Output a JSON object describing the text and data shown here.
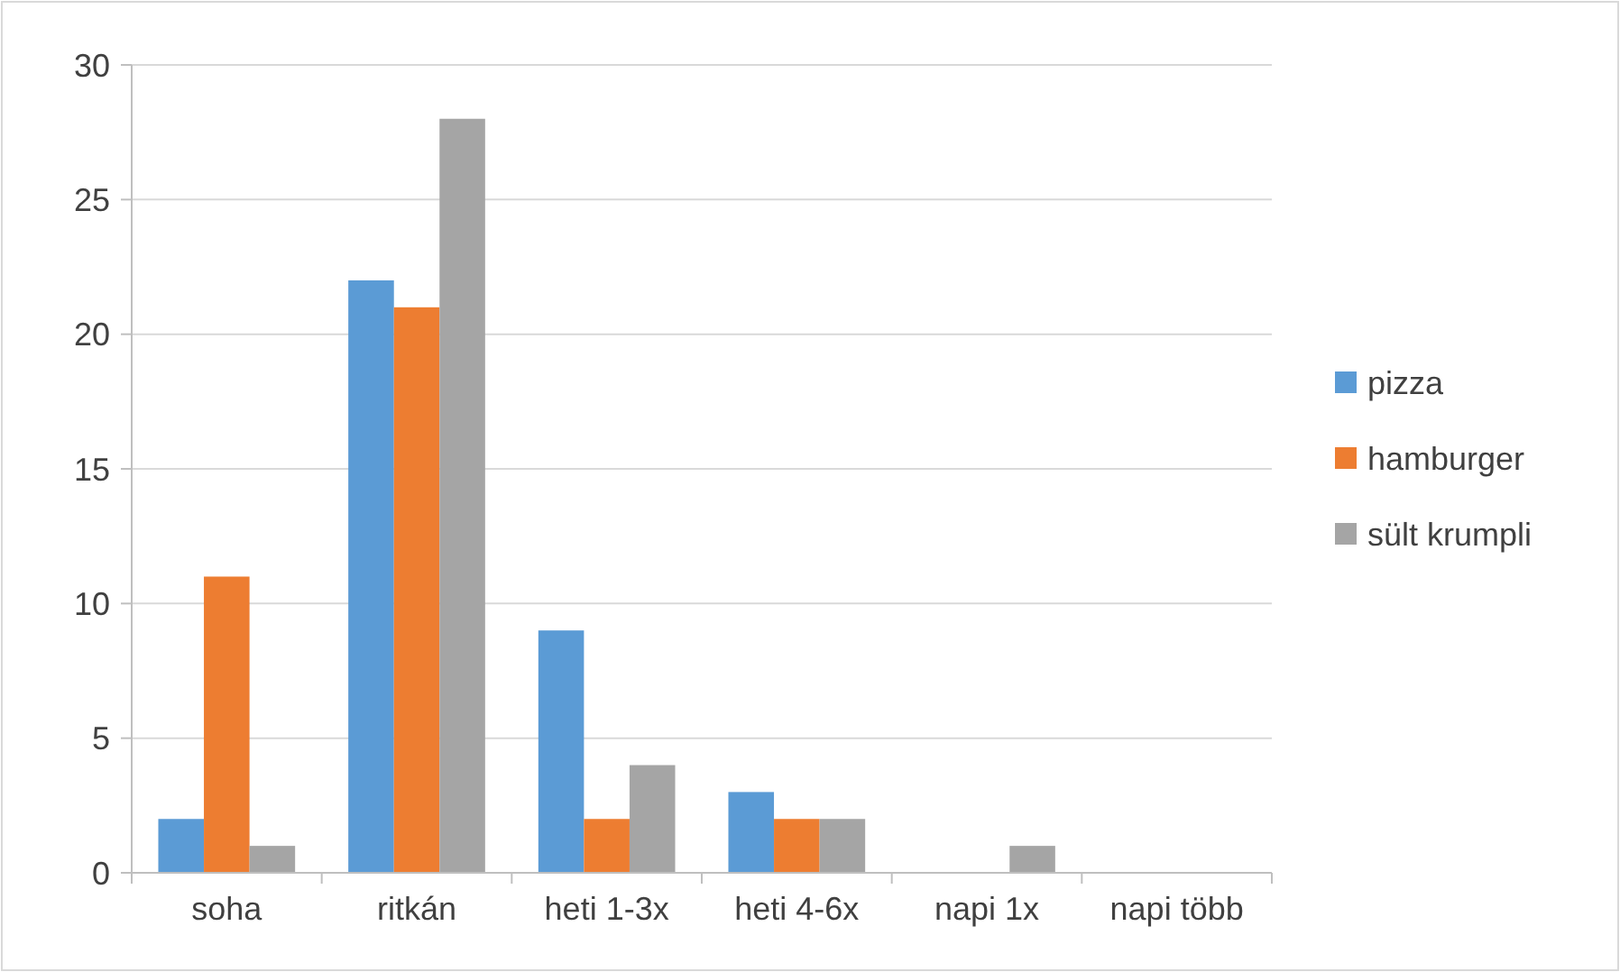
{
  "chart_data": {
    "type": "bar",
    "categories": [
      "soha",
      "ritkán",
      "heti 1-3x",
      "heti 4-6x",
      "napi 1x",
      "napi több"
    ],
    "series": [
      {
        "name": "pizza",
        "color": "#5b9bd5",
        "values": [
          2,
          22,
          9,
          3,
          0,
          0
        ]
      },
      {
        "name": "hamburger",
        "color": "#ed7d31",
        "values": [
          11,
          21,
          2,
          2,
          0,
          0
        ]
      },
      {
        "name": "sült krumpli",
        "color": "#a5a5a5",
        "values": [
          1,
          28,
          4,
          2,
          1,
          0
        ]
      }
    ],
    "ylim": [
      0,
      30
    ],
    "yticks": [
      0,
      5,
      10,
      15,
      20,
      25,
      30
    ],
    "grid": "y",
    "legend": "right"
  }
}
